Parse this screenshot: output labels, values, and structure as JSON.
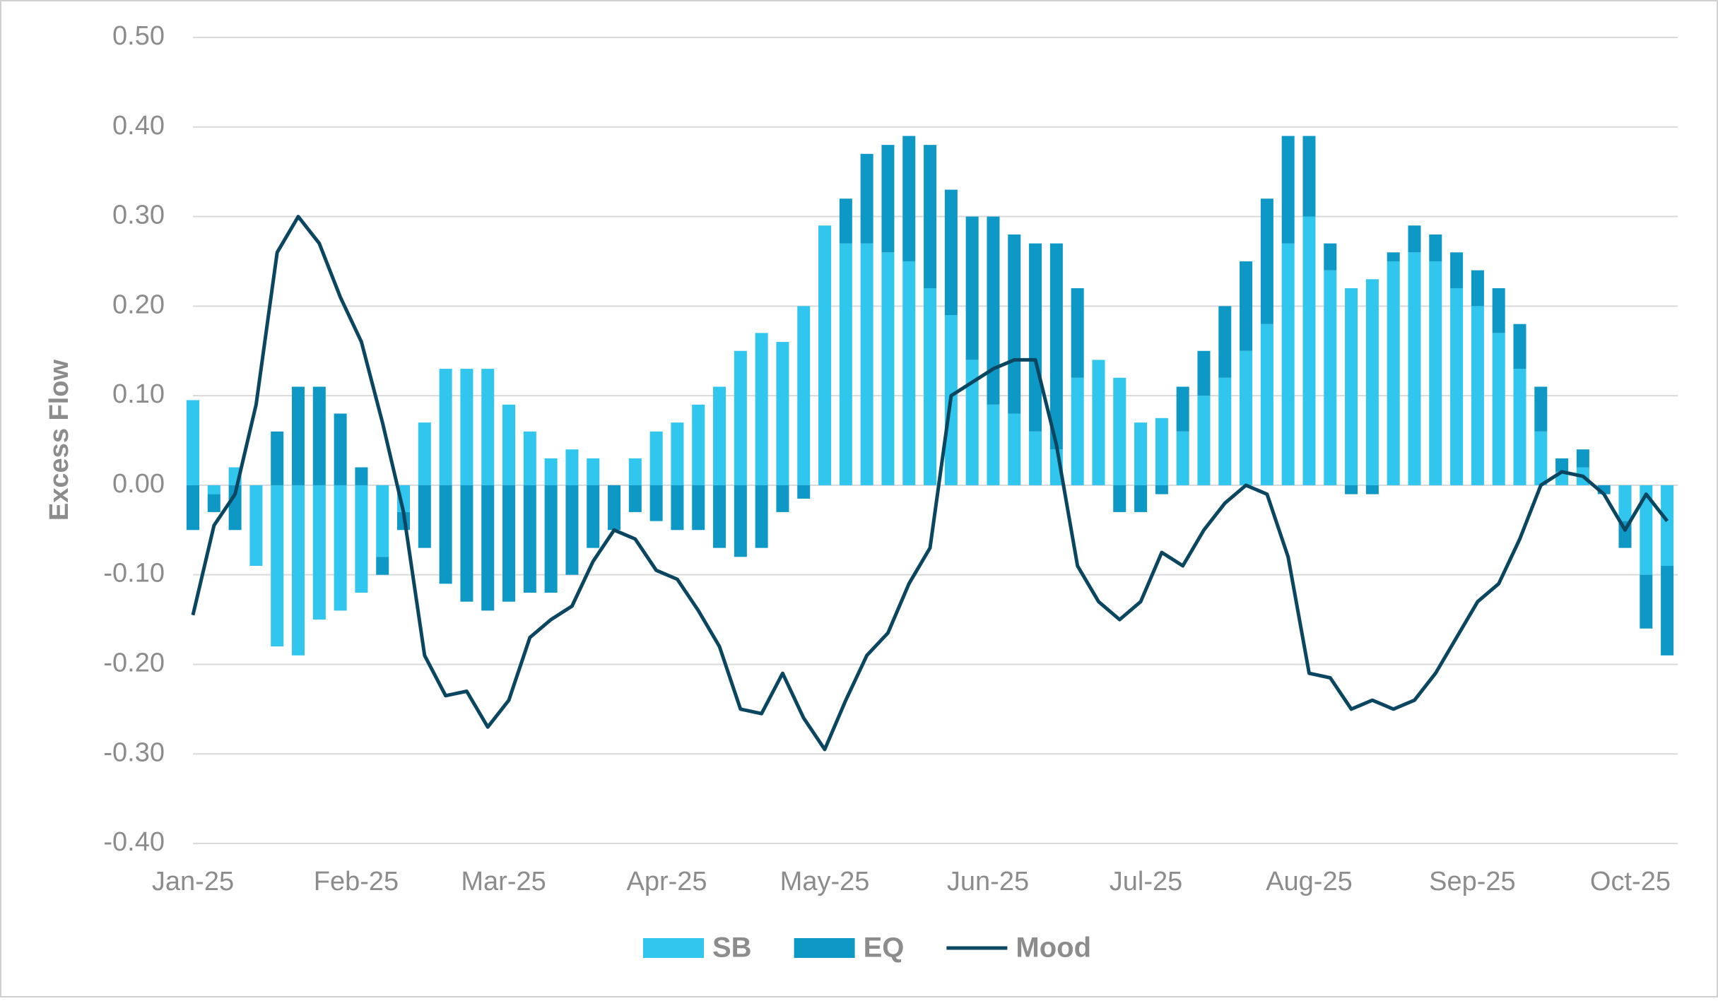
{
  "chart_data": {
    "type": "combo",
    "y_label": "Excess Flow",
    "x": [
      0,
      4,
      8,
      12,
      16,
      20,
      24,
      28,
      32,
      36,
      40,
      44,
      48,
      52,
      56,
      60,
      64,
      68,
      72,
      76,
      80,
      84,
      88,
      92,
      96,
      100,
      104,
      108,
      112,
      116,
      120,
      124,
      128,
      132,
      136,
      140,
      144,
      148,
      152,
      156,
      160,
      164,
      168,
      172,
      176,
      180,
      184,
      188,
      192,
      196,
      200,
      204,
      208,
      212,
      216,
      220,
      224,
      228,
      232,
      236,
      240,
      244,
      248,
      252,
      256,
      260,
      264,
      268,
      272,
      276,
      280
    ],
    "xlim": [
      0,
      282
    ],
    "xticks": [
      {
        "value": 0,
        "label": "Jan-25"
      },
      {
        "value": 31,
        "label": "Feb-25"
      },
      {
        "value": 59,
        "label": "Mar-25"
      },
      {
        "value": 90,
        "label": "Apr-25"
      },
      {
        "value": 120,
        "label": "May-25"
      },
      {
        "value": 151,
        "label": "Jun-25"
      },
      {
        "value": 181,
        "label": "Jul-25"
      },
      {
        "value": 212,
        "label": "Aug-25"
      },
      {
        "value": 243,
        "label": "Sep-25"
      },
      {
        "value": 273,
        "label": "Oct-25"
      }
    ],
    "ylim": [
      -0.4,
      0.5
    ],
    "yticks": [
      {
        "value": -0.4,
        "label": "-0.40"
      },
      {
        "value": -0.3,
        "label": "-0.30"
      },
      {
        "value": -0.2,
        "label": "-0.20"
      },
      {
        "value": -0.1,
        "label": "-0.10"
      },
      {
        "value": 0,
        "label": "0.00"
      },
      {
        "value": 0.1,
        "label": "0.10"
      },
      {
        "value": 0.2,
        "label": "0.20"
      },
      {
        "value": 0.3,
        "label": "0.30"
      },
      {
        "value": 0.4,
        "label": "0.40"
      },
      {
        "value": 0.5,
        "label": "0.50"
      }
    ],
    "grid": true,
    "legend": "bottom",
    "series": [
      {
        "name": "SB",
        "type": "bar",
        "color": "#30c6ee",
        "values": [
          0.095,
          -0.01,
          0.02,
          -0.09,
          -0.18,
          -0.19,
          -0.15,
          -0.14,
          -0.12,
          -0.08,
          -0.03,
          0.07,
          0.13,
          0.13,
          0.13,
          0.09,
          0.06,
          0.03,
          0.04,
          0.03,
          0.0,
          0.03,
          0.06,
          0.07,
          0.09,
          0.11,
          0.15,
          0.17,
          0.16,
          0.2,
          0.29,
          0.27,
          0.27,
          0.26,
          0.25,
          0.22,
          0.19,
          0.14,
          0.09,
          0.08,
          0.06,
          0.04,
          0.12,
          0.14,
          0.12,
          0.07,
          0.075,
          0.06,
          0.1,
          0.12,
          0.15,
          0.18,
          0.27,
          0.3,
          0.24,
          0.22,
          0.23,
          0.25,
          0.26,
          0.25,
          0.22,
          0.2,
          0.17,
          0.13,
          0.06,
          0.015,
          0.02,
          0.0,
          -0.04,
          -0.1,
          -0.09
        ]
      },
      {
        "name": "EQ",
        "type": "bar",
        "color": "#0d98c6",
        "values": [
          -0.05,
          -0.02,
          -0.05,
          0.0,
          0.06,
          0.11,
          0.11,
          0.08,
          0.02,
          -0.02,
          -0.02,
          -0.07,
          -0.11,
          -0.13,
          -0.14,
          -0.13,
          -0.12,
          -0.12,
          -0.1,
          -0.07,
          -0.05,
          -0.03,
          -0.04,
          -0.05,
          -0.05,
          -0.07,
          -0.08,
          -0.07,
          -0.03,
          -0.015,
          0.0,
          0.05,
          0.1,
          0.12,
          0.14,
          0.16,
          0.14,
          0.16,
          0.21,
          0.2,
          0.21,
          0.23,
          0.1,
          0.0,
          -0.03,
          -0.03,
          -0.01,
          0.05,
          0.05,
          0.08,
          0.1,
          0.14,
          0.12,
          0.09,
          0.03,
          -0.01,
          -0.01,
          0.01,
          0.03,
          0.03,
          0.04,
          0.04,
          0.05,
          0.05,
          0.05,
          0.015,
          0.02,
          -0.01,
          -0.03,
          -0.06,
          -0.1
        ]
      },
      {
        "name": "Mood",
        "type": "line",
        "color": "#0b4660",
        "values": [
          -0.145,
          -0.045,
          -0.01,
          0.09,
          0.26,
          0.3,
          0.27,
          0.21,
          0.16,
          0.07,
          -0.03,
          -0.19,
          -0.235,
          -0.23,
          -0.27,
          -0.24,
          -0.17,
          -0.15,
          -0.135,
          -0.085,
          -0.05,
          -0.06,
          -0.095,
          -0.105,
          -0.14,
          -0.18,
          -0.25,
          -0.255,
          -0.21,
          -0.26,
          -0.295,
          -0.24,
          -0.19,
          -0.165,
          -0.11,
          -0.07,
          0.1,
          0.115,
          0.13,
          0.14,
          0.14,
          0.045,
          -0.09,
          -0.13,
          -0.15,
          -0.13,
          -0.075,
          -0.09,
          -0.05,
          -0.02,
          0.0,
          -0.01,
          -0.08,
          -0.21,
          -0.215,
          -0.25,
          -0.24,
          -0.25,
          -0.24,
          -0.21,
          -0.17,
          -0.13,
          -0.11,
          -0.06,
          0.0,
          0.015,
          0.01,
          -0.01,
          -0.05,
          -0.01,
          -0.04
        ]
      }
    ]
  }
}
